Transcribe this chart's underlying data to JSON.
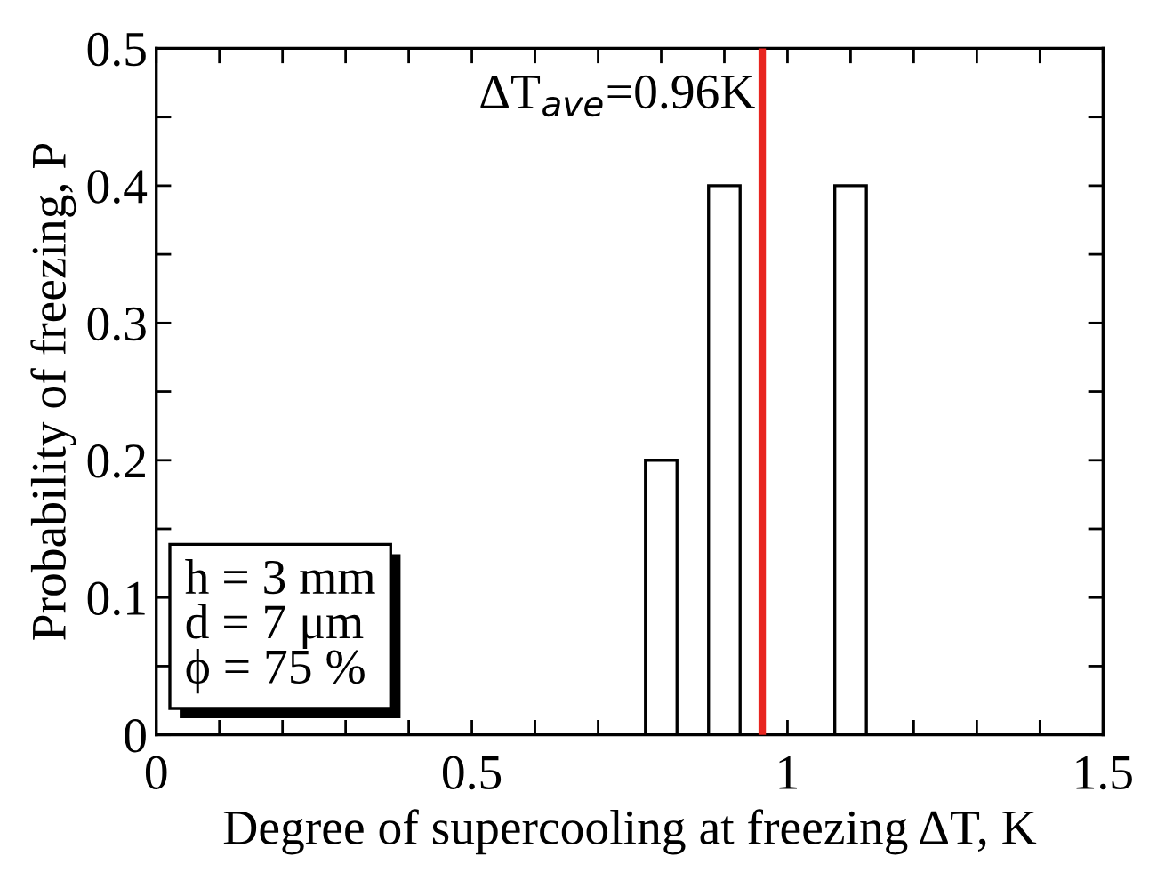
{
  "chart_data": {
    "type": "bar",
    "x": [
      0.8,
      0.9,
      1.1
    ],
    "series": [
      {
        "color": "#ffffff",
        "values": [
          0.2,
          0.4,
          0.4
        ]
      }
    ],
    "xlabel": "Degree of supercooling at freezing ΔT, K",
    "ylabel": "Probability of freezing, P",
    "xlim": [
      0,
      1.5
    ],
    "ylim": [
      0,
      0.5
    ],
    "xticks": [
      0,
      {
        "value": 0.1,
        "label": null
      },
      {
        "value": 0.2,
        "label": null
      },
      {
        "value": 0.3,
        "label": null
      },
      {
        "value": 0.4,
        "label": null
      },
      0.5,
      {
        "value": 0.6,
        "label": null
      },
      {
        "value": 0.7,
        "label": null
      },
      {
        "value": 0.8,
        "label": null
      },
      {
        "value": 0.9,
        "label": null
      },
      1,
      {
        "value": 1.1,
        "label": null
      },
      {
        "value": 1.2,
        "label": null
      },
      {
        "value": 1.3,
        "label": null
      },
      {
        "value": 1.4,
        "label": null
      },
      1.5
    ],
    "yticks": [
      0,
      {
        "value": 0.05,
        "label": null
      },
      0.1,
      {
        "value": 0.15,
        "label": null
      },
      0.2,
      {
        "value": 0.25,
        "label": null
      },
      0.3,
      {
        "value": 0.35,
        "label": null
      },
      0.4,
      {
        "value": 0.45,
        "label": null
      },
      0.5
    ],
    "ref_lines": [
      {
        "axis": "x",
        "value": 0.96,
        "label": "ΔT$_{ave}$=0.96K",
        "color": "#e8251f"
      }
    ],
    "annotations": [
      "h = 3 mm\nd = 7 μm\nϕ = 75 %"
    ],
    "grid": false,
    "legend": false
  }
}
